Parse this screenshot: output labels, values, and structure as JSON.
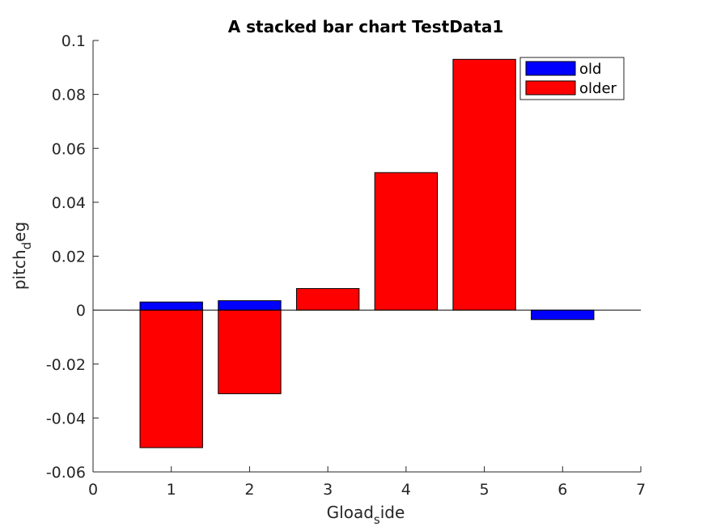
{
  "chart_data": {
    "type": "bar",
    "stacked": true,
    "title": "A stacked bar chart TestData1",
    "xlabel": {
      "main": "Gload",
      "sub": "s",
      "rest": "ide"
    },
    "ylabel": {
      "main": "pitch",
      "sub": "d",
      "rest": "eg"
    },
    "x": [
      1,
      2,
      3,
      4,
      5,
      6
    ],
    "xlim": [
      0,
      7
    ],
    "ylim": [
      -0.06,
      0.1
    ],
    "xticks": [
      0,
      1,
      2,
      3,
      4,
      5,
      6,
      7
    ],
    "yticks": [
      -0.06,
      -0.04,
      -0.02,
      0,
      0.02,
      0.04,
      0.06,
      0.08,
      0.1
    ],
    "ytick_labels": [
      "-0.06",
      "-0.04",
      "-0.02",
      "0",
      "0.02",
      "0.04",
      "0.06",
      "0.08",
      "0.1"
    ],
    "xtick_labels": [
      "0",
      "1",
      "2",
      "3",
      "4",
      "5",
      "6",
      "7"
    ],
    "legend_position": "top-right",
    "grid": false,
    "series": [
      {
        "name": "old",
        "color": "#0000ff",
        "values": [
          0.003,
          0.0035,
          0,
          0,
          0,
          -0.0035
        ]
      },
      {
        "name": "older",
        "color": "#ff0000",
        "values": [
          -0.051,
          -0.031,
          0.008,
          0.051,
          0.093,
          0
        ]
      }
    ]
  }
}
